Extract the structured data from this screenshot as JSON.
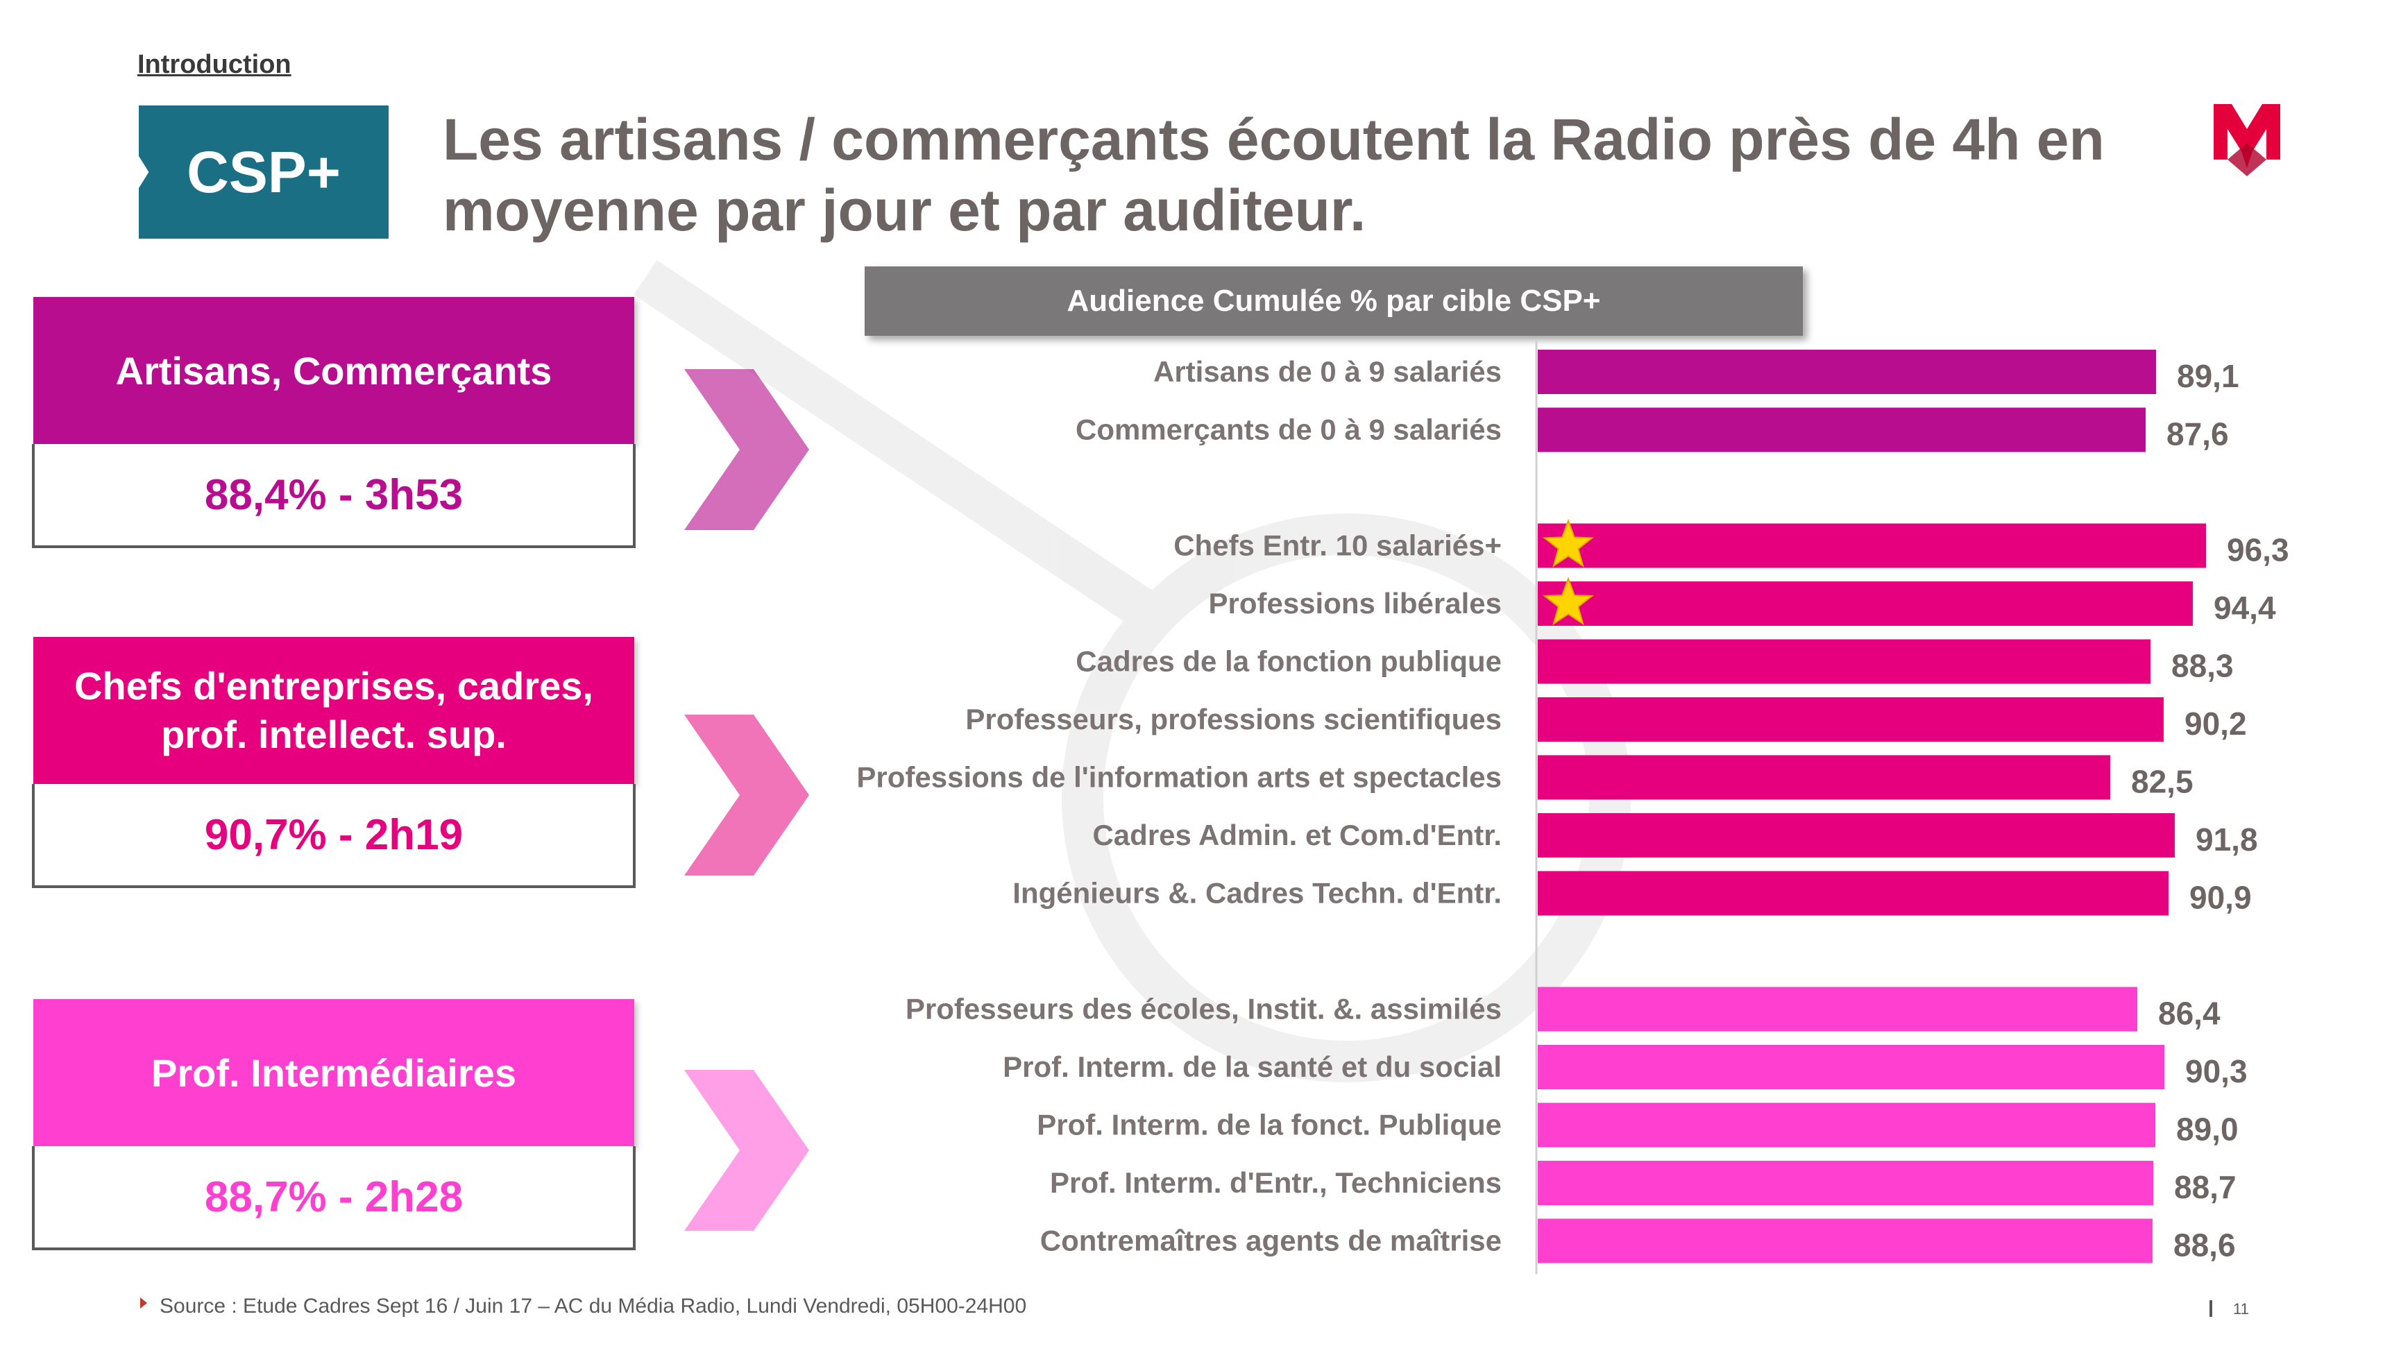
{
  "header": {
    "section": "Introduction",
    "badge": "CSP+",
    "title": "Les artisans / commerçants écoutent la Radio près de 4h en moyenne par jour et par auditeur."
  },
  "categories": [
    {
      "title": "Artisans, Commerçants",
      "stat": "88,4% - 3h53",
      "color": "#b80d8e"
    },
    {
      "title": "Chefs d'entreprises, cadres, prof. intellect. sup.",
      "stat": "90,7% - 2h19",
      "color": "#e6007e"
    },
    {
      "title": "Prof. Intermédiaires",
      "stat": "88,7% - 2h28",
      "color": "#ff3fcf"
    }
  ],
  "chart_header": "Audience Cumulée % par cible CSP+",
  "chart_data": {
    "type": "bar",
    "orientation": "horizontal",
    "title": "Audience Cumulée % par cible CSP+",
    "xlim": [
      0,
      100
    ],
    "groups": [
      {
        "category": "Artisans, Commerçants",
        "color": "#b80d8e",
        "bars": [
          {
            "label": "Artisans de 0 à 9 salariés",
            "value": 89.1,
            "display": "89,1",
            "star": false
          },
          {
            "label": "Commerçants de 0 à 9 salariés",
            "value": 87.6,
            "display": "87,6",
            "star": false
          }
        ]
      },
      {
        "category": "Chefs d'entreprises, cadres, prof. intellect. sup.",
        "color": "#e6007e",
        "bars": [
          {
            "label": "Chefs Entr. 10 salariés+",
            "value": 96.3,
            "display": "96,3",
            "star": true
          },
          {
            "label": "Professions libérales",
            "value": 94.4,
            "display": "94,4",
            "star": true
          },
          {
            "label": "Cadres de la fonction publique",
            "value": 88.3,
            "display": "88,3",
            "star": false
          },
          {
            "label": "Professeurs, professions scientifiques",
            "value": 90.2,
            "display": "90,2",
            "star": false
          },
          {
            "label": "Professions de l'information arts et spectacles",
            "value": 82.5,
            "display": "82,5",
            "star": false
          },
          {
            "label": "Cadres Admin. et Com.d'Entr.",
            "value": 91.8,
            "display": "91,8",
            "star": false
          },
          {
            "label": "Ingénieurs &. Cadres Techn. d'Entr.",
            "value": 90.9,
            "display": "90,9",
            "star": false
          }
        ]
      },
      {
        "category": "Prof. Intermédiaires",
        "color": "#ff3fcf",
        "bars": [
          {
            "label": "Professeurs des écoles, Instit. &. assimilés",
            "value": 86.4,
            "display": "86,4",
            "star": false
          },
          {
            "label": "Prof. Interm. de la santé et du social",
            "value": 90.3,
            "display": "90,3",
            "star": false
          },
          {
            "label": "Prof. Interm. de la fonct. Publique",
            "value": 89.0,
            "display": "89,0",
            "star": false
          },
          {
            "label": "Prof. Interm. d'Entr., Techniciens",
            "value": 88.7,
            "display": "88,7",
            "star": false
          },
          {
            "label": "Contremaîtres agents de maîtrise",
            "value": 88.6,
            "display": "88,6",
            "star": false
          }
        ]
      }
    ]
  },
  "footer": {
    "source": "Source : Etude Cadres Sept 16 / Juin 17 – AC du Média Radio, Lundi Vendredi, 05H00-24H00",
    "page": "11"
  },
  "colors": {
    "badge": "#1b6f85",
    "chart_header": "#7a7878",
    "star": "#ffd500",
    "logo": "#e4003a"
  }
}
